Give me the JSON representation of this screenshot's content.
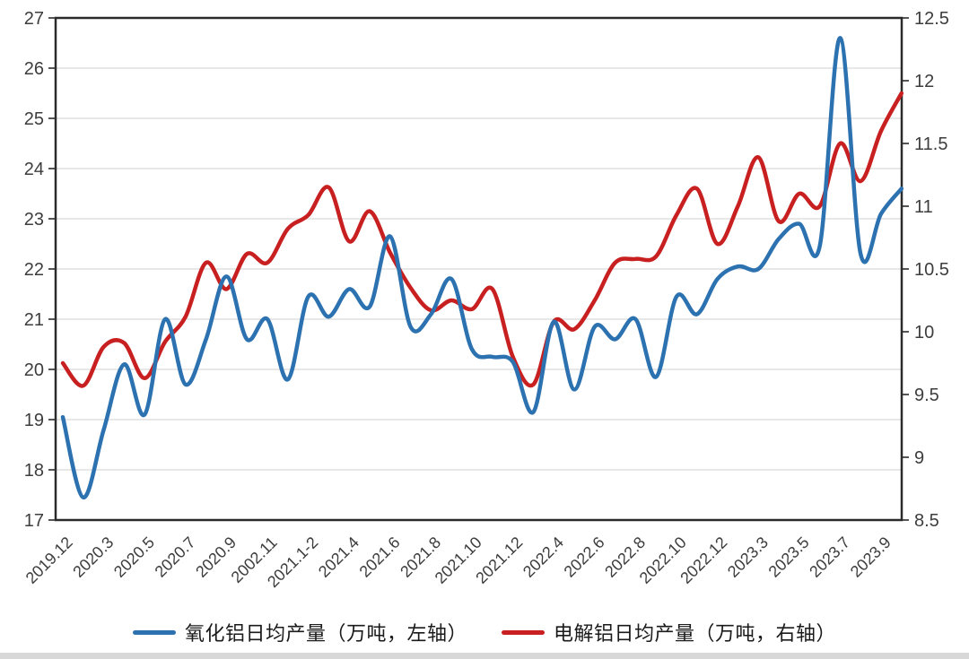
{
  "chart_data": {
    "type": "line",
    "title": "",
    "x_labels": [
      "2019.12",
      "2020.3",
      "2020.5",
      "2020.7",
      "2020.9",
      "2002.11",
      "2021.1-2",
      "2021.4",
      "2021.6",
      "2021.8",
      "2021.10",
      "2021.12",
      "2022.4",
      "2022.6",
      "2022.8",
      "2022.10",
      "2022.12",
      "2023.3",
      "2023.5",
      "2023.7",
      "2023.9"
    ],
    "label_every_n_points": 2,
    "series": [
      {
        "name": "电解铝日均产量（万吨，右轴）",
        "axis": "right",
        "color": "#C82020",
        "values": [
          9.75,
          9.57,
          9.88,
          9.91,
          9.63,
          9.92,
          10.12,
          10.55,
          10.34,
          10.62,
          10.55,
          10.82,
          10.93,
          11.15,
          10.72,
          10.96,
          10.63,
          10.35,
          10.17,
          10.25,
          10.18,
          10.34,
          9.8,
          9.58,
          10.08,
          10.02,
          10.25,
          10.55,
          10.58,
          10.6,
          10.93,
          11.14,
          10.7,
          11.0,
          11.39,
          10.88,
          11.1,
          11.0,
          11.5,
          11.2,
          11.6,
          11.9
        ]
      },
      {
        "name": "氧化铝日均产量（万吨，左轴）",
        "axis": "left",
        "color": "#2D72B0",
        "values": [
          19.05,
          17.45,
          18.8,
          20.1,
          19.1,
          21.0,
          19.7,
          20.6,
          21.85,
          20.6,
          21.0,
          19.8,
          21.45,
          21.05,
          21.6,
          21.25,
          22.65,
          20.85,
          21.1,
          21.8,
          20.4,
          20.25,
          20.15,
          19.15,
          20.95,
          19.6,
          20.85,
          20.6,
          21.0,
          19.85,
          21.45,
          21.1,
          21.8,
          22.05,
          22.0,
          22.6,
          22.9,
          22.45,
          26.6,
          22.3,
          23.1,
          23.6
        ]
      }
    ],
    "left_axis": {
      "min": 17,
      "max": 27,
      "ticks": [
        "27",
        "26",
        "25",
        "24",
        "23",
        "22",
        "21",
        "20",
        "19",
        "18",
        "17"
      ]
    },
    "right_axis": {
      "min": 8.5,
      "max": 12.5,
      "ticks": [
        "12.5",
        "12",
        "11.5",
        "11",
        "10.5",
        "10",
        "9.5",
        "9",
        "8.5"
      ]
    },
    "grid": "horizontal",
    "legend_position": "bottom",
    "legend": {
      "left_series_label": "氧化铝日均产量（万吨，左轴）",
      "right_series_label": "电解铝日均产量（万吨，右轴）"
    },
    "style_colors": {
      "grid_line": "#d9d9d9",
      "axis_border": "#2b2b2b",
      "tick_text": "#3d3d3d",
      "bottom_strip": "#d8d8d8"
    }
  }
}
